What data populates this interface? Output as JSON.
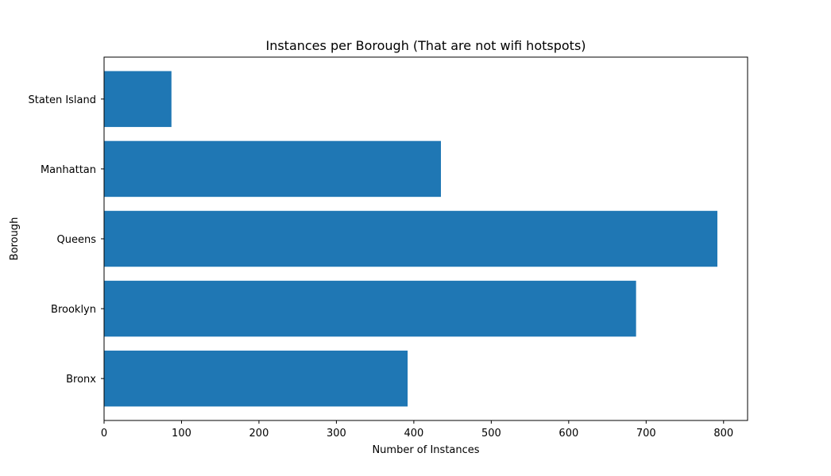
{
  "chart_data": {
    "type": "bar",
    "orientation": "horizontal",
    "title": "Instances per Borough (That are not wifi hotspots)",
    "xlabel": "Number of Instances",
    "ylabel": "Borough",
    "categories": [
      "Bronx",
      "Brooklyn",
      "Queens",
      "Manhattan",
      "Staten Island"
    ],
    "values": [
      392,
      687,
      792,
      435,
      87
    ],
    "xlim": [
      0,
      831
    ],
    "xticks": [
      0,
      100,
      200,
      300,
      400,
      500,
      600,
      700,
      800
    ],
    "grid": false,
    "legend": "none",
    "colors": {
      "bar": "#1f77b4",
      "axis": "#000000",
      "background": "#ffffff"
    }
  }
}
